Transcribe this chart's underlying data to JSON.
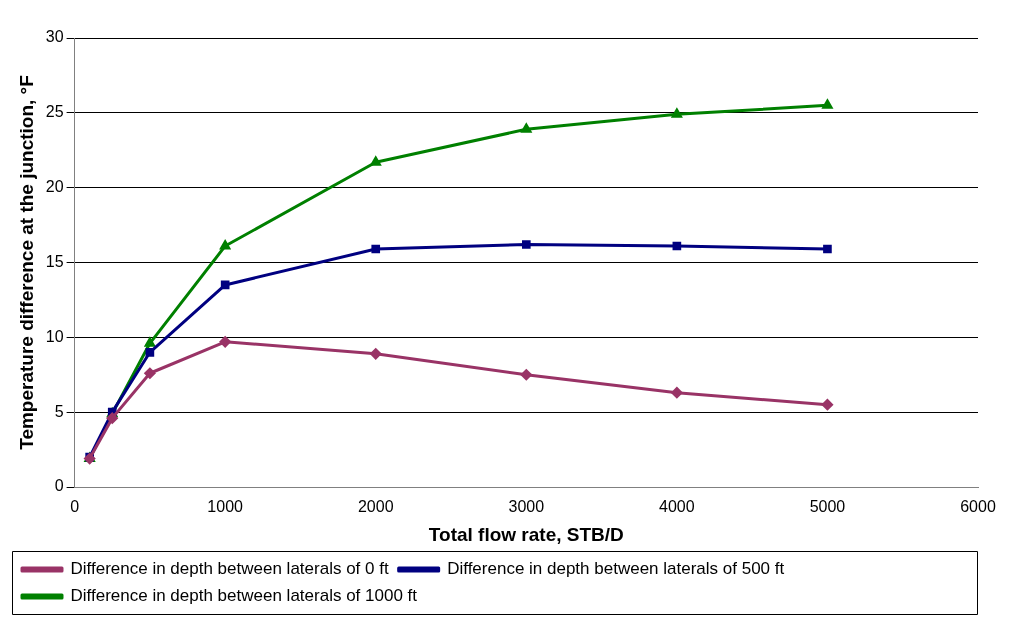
{
  "chart_data": {
    "type": "line",
    "xlabel": "Total flow rate, STB/D",
    "ylabel": "Temperature difference at the junction, °F",
    "x": [
      100,
      250,
      500,
      1000,
      2000,
      3000,
      4000,
      5000
    ],
    "series": [
      {
        "name": "Difference in depth between laterals of 0 ft",
        "color": "#993366",
        "marker": "diamond",
        "values": [
          1.9,
          4.6,
          7.6,
          9.7,
          8.9,
          7.5,
          6.3,
          5.5
        ]
      },
      {
        "name": "Difference in depth between laterals of 500 ft",
        "color": "#000080",
        "marker": "square",
        "values": [
          2.0,
          5.0,
          9.0,
          13.5,
          15.9,
          16.2,
          16.1,
          15.9
        ]
      },
      {
        "name": "Difference in depth between laterals of 1000 ft",
        "color": "#008000",
        "marker": "triangle",
        "values": [
          1.9,
          4.9,
          9.6,
          16.1,
          21.7,
          23.9,
          24.9,
          25.5
        ]
      }
    ],
    "xlim": [
      0,
      6000
    ],
    "xticks": [
      0,
      1000,
      2000,
      3000,
      4000,
      5000,
      6000
    ],
    "ylim": [
      0,
      30
    ],
    "yticks": [
      0,
      5,
      10,
      15,
      20,
      25,
      30
    ],
    "grid": "y",
    "legend": "bottom",
    "line_style": "solid"
  }
}
